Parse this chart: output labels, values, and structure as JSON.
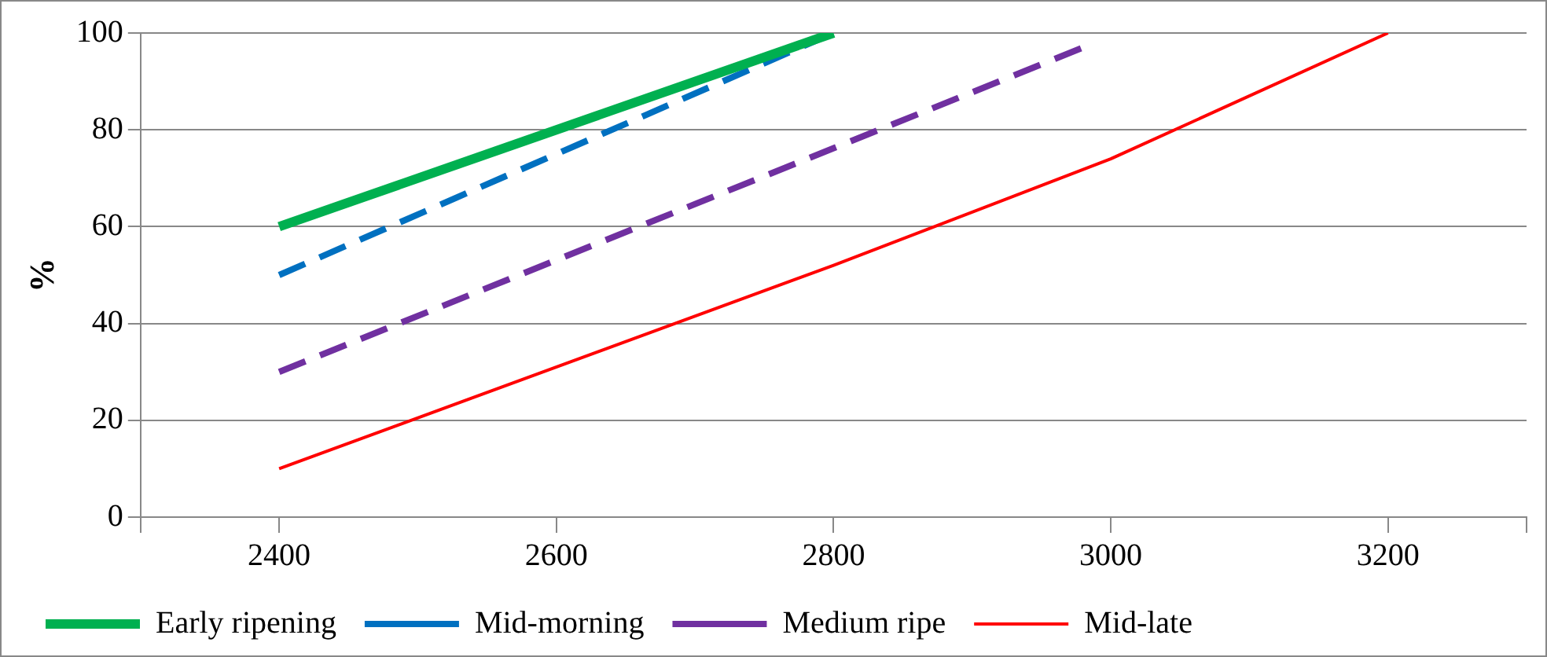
{
  "chart_data": {
    "type": "line",
    "ylabel": "%",
    "xlim": [
      2300,
      3300
    ],
    "xticks": [
      {
        "value": 2300,
        "label": null
      },
      2400,
      2600,
      2800,
      3000,
      3200,
      {
        "value": 3300,
        "label": null
      }
    ],
    "ylim": [
      0,
      100
    ],
    "yticks": [
      0,
      20,
      40,
      60,
      80,
      100
    ],
    "grid": "y",
    "legend": "bottom",
    "marker": "none",
    "series": [
      {
        "name": "Early ripening",
        "color": "#00b050",
        "x": [
          2400,
          2800
        ],
        "values": [
          60,
          100
        ],
        "line_style": "solid"
      },
      {
        "name": "Mid-morning",
        "color": "#0070c0",
        "x": [
          2400,
          2800
        ],
        "values": [
          50,
          100
        ],
        "line_style": "dashed"
      },
      {
        "name": "Medium ripe",
        "color": "#7030a0",
        "x": [
          2400,
          2980
        ],
        "values": [
          30,
          97
        ],
        "line_style": "dashed"
      },
      {
        "name": "Mid-late",
        "color": "#ff0000",
        "x": [
          2400,
          2800,
          3000,
          3200
        ],
        "values": [
          10,
          52,
          74,
          100
        ],
        "line_style": "solid"
      }
    ]
  }
}
